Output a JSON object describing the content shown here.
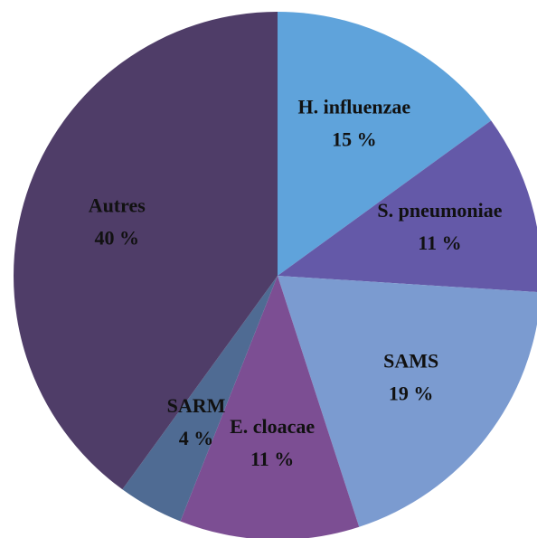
{
  "chart_data": {
    "type": "pie",
    "categories": [
      "H. influenzae",
      "S. pneumoniae",
      "SAMS",
      "E. cloacae",
      "SARM",
      "Autres"
    ],
    "values": [
      15,
      11,
      19,
      11,
      4,
      40
    ],
    "value_labels": [
      "15 %",
      "11 %",
      "19 %",
      "11 %",
      "4 %",
      "40 %"
    ],
    "colors": [
      "#5fa3db",
      "#6459a8",
      "#7b9bd0",
      "#7c4e93",
      "#4f6b93",
      "#4f3d68"
    ]
  }
}
